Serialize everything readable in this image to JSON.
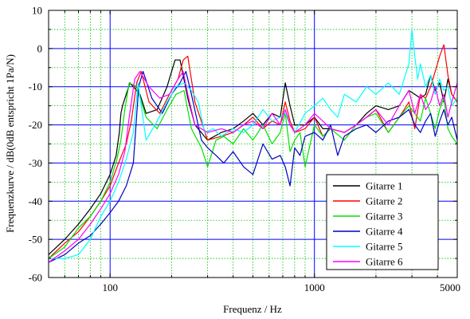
{
  "chart_data": {
    "type": "line",
    "title": "",
    "xlabel": "Frequenz / Hz",
    "ylabel": "Frequenzkurve / dB(0dB entspricht 1Pa/N)",
    "xscale": "log",
    "xlim": [
      50,
      5000
    ],
    "ylim": [
      -60,
      10
    ],
    "xticks": [
      {
        "value": 100,
        "label": "100"
      },
      {
        "value": 1000,
        "label": "1000"
      },
      {
        "value": 5000,
        "label": "5000"
      }
    ],
    "yticks": [
      {
        "value": 10,
        "label": "10"
      },
      {
        "value": 0,
        "label": "0"
      },
      {
        "value": -10,
        "label": "-10"
      },
      {
        "value": -20,
        "label": "-20"
      },
      {
        "value": -30,
        "label": "-30"
      },
      {
        "value": -40,
        "label": "-40"
      },
      {
        "value": -50,
        "label": "-50"
      },
      {
        "value": -60,
        "label": "-60"
      }
    ],
    "grid": {
      "major": true,
      "minor": true,
      "major_color": "#0000ff",
      "minor_color": "#00c000"
    },
    "legend_position": "bottom-right",
    "series": [
      {
        "name": "Gitarre 1",
        "color": "#000000",
        "x": [
          50,
          60,
          70,
          80,
          90,
          100,
          107,
          111,
          113,
          115,
          125,
          140,
          150,
          170,
          190,
          208,
          220,
          240,
          260,
          300,
          350,
          400,
          450,
          500,
          560,
          620,
          680,
          720,
          760,
          800,
          900,
          1000,
          1100,
          1200,
          1400,
          1600,
          1800,
          2000,
          2300,
          2600,
          2900,
          3100,
          3300,
          3500,
          3700,
          3900,
          4100,
          4300,
          4500,
          4700,
          5000
        ],
        "y": [
          -54,
          -50,
          -46,
          -42,
          -38,
          -33,
          -28,
          -22,
          -17,
          -15,
          -9,
          -12,
          -17,
          -16,
          -10,
          -3,
          -3,
          -13,
          -20,
          -24,
          -22,
          -21,
          -19,
          -17,
          -20,
          -17,
          -18,
          -9,
          -15,
          -20,
          -20,
          -18,
          -21,
          -21,
          -22,
          -20,
          -17,
          -15,
          -16,
          -15,
          -11,
          -12,
          -13,
          -12,
          -7,
          -11,
          -9,
          -14,
          -8,
          -12,
          -14
        ]
      },
      {
        "name": "Gitarre 2",
        "color": "#ff0000",
        "x": [
          50,
          60,
          70,
          80,
          90,
          100,
          110,
          120,
          127,
          135,
          142,
          155,
          175,
          195,
          215,
          228,
          240,
          260,
          300,
          350,
          400,
          450,
          500,
          560,
          620,
          680,
          720,
          760,
          800,
          900,
          1000,
          1100,
          1200,
          1400,
          1600,
          1800,
          2000,
          2300,
          2600,
          2900,
          3100,
          3300,
          3500,
          3700,
          3900,
          4100,
          4300,
          4500,
          4700,
          5000
        ],
        "y": [
          -55,
          -51,
          -48,
          -44,
          -40,
          -36,
          -30,
          -25,
          -19,
          -9,
          -6,
          -14,
          -17,
          -12,
          -8,
          -3,
          -2,
          -14,
          -24,
          -23,
          -22,
          -20,
          -18,
          -21,
          -19,
          -20,
          -14,
          -19,
          -22,
          -21,
          -18,
          -23,
          -21,
          -22,
          -20,
          -18,
          -16,
          -22,
          -18,
          -14,
          -21,
          -12,
          -13,
          -10,
          -6,
          -2,
          1,
          -7,
          -12,
          -14
        ]
      },
      {
        "name": "Gitarre 3",
        "color": "#00e000",
        "x": [
          50,
          60,
          70,
          80,
          90,
          100,
          108,
          113,
          118,
          124,
          135,
          150,
          170,
          190,
          210,
          230,
          250,
          280,
          300,
          330,
          360,
          400,
          450,
          500,
          560,
          620,
          680,
          720,
          760,
          800,
          850,
          900,
          1000,
          1100,
          1200,
          1400,
          1600,
          1800,
          2000,
          2300,
          2600,
          2900,
          3100,
          3300,
          3500,
          3700,
          3900,
          4100,
          4300,
          4500,
          4700,
          5000
        ],
        "y": [
          -55,
          -52,
          -47,
          -44,
          -40,
          -35,
          -29,
          -24,
          -16,
          -9,
          -10,
          -18,
          -21,
          -16,
          -12,
          -11,
          -21,
          -26,
          -31,
          -24,
          -23,
          -25,
          -21,
          -24,
          -20,
          -25,
          -22,
          -17,
          -27,
          -24,
          -22,
          -31,
          -20,
          -23,
          -21,
          -24,
          -20,
          -18,
          -17,
          -22,
          -18,
          -15,
          -17,
          -19,
          -13,
          -17,
          -21,
          -16,
          -13,
          -21,
          -23,
          -25
        ]
      },
      {
        "name": "Gitarre 4",
        "color": "#0000c0",
        "x": [
          50,
          60,
          70,
          80,
          90,
          100,
          110,
          120,
          130,
          138,
          145,
          160,
          180,
          200,
          220,
          235,
          250,
          280,
          300,
          330,
          360,
          400,
          450,
          500,
          560,
          620,
          680,
          720,
          760,
          800,
          850,
          900,
          1000,
          1100,
          1200,
          1300,
          1400,
          1600,
          1800,
          2000,
          2300,
          2600,
          2900,
          3100,
          3300,
          3500,
          3700,
          3900,
          4100,
          4300,
          4500,
          4700,
          5000
        ],
        "y": [
          -56,
          -54,
          -51,
          -49,
          -46,
          -43,
          -40,
          -36,
          -30,
          -10,
          -6,
          -13,
          -17,
          -12,
          -9,
          -6,
          -12,
          -24,
          -26,
          -28,
          -30,
          -27,
          -31,
          -33,
          -25,
          -29,
          -28,
          -31,
          -36,
          -26,
          -28,
          -23,
          -22,
          -24,
          -20,
          -28,
          -23,
          -21,
          -20,
          -22,
          -19,
          -18,
          -16,
          -20,
          -22,
          -19,
          -17,
          -23,
          -19,
          -16,
          -20,
          -18,
          -24
        ]
      },
      {
        "name": "Gitarre 5",
        "color": "#00ffff",
        "x": [
          50,
          60,
          70,
          80,
          90,
          100,
          110,
          120,
          130,
          137,
          150,
          170,
          190,
          210,
          230,
          250,
          270,
          290,
          320,
          350,
          400,
          450,
          500,
          560,
          620,
          680,
          720,
          760,
          800,
          900,
          1000,
          1100,
          1200,
          1300,
          1400,
          1600,
          1800,
          2000,
          2300,
          2600,
          2900,
          3000,
          3100,
          3200,
          3300,
          3500,
          3700,
          3900,
          4100,
          4300,
          4500,
          4700,
          5000
        ],
        "y": [
          -55,
          -55,
          -54,
          -50,
          -44,
          -40,
          -35,
          -29,
          -22,
          -9,
          -24,
          -19,
          -14,
          -10,
          -9,
          -11,
          -14,
          -22,
          -21,
          -23,
          -21,
          -22,
          -20,
          -16,
          -19,
          -18,
          -17,
          -20,
          -22,
          -17,
          -15,
          -13,
          -16,
          -18,
          -12,
          -14,
          -10,
          -12,
          -9,
          -12,
          -4,
          5,
          -2,
          -8,
          -4,
          -10,
          -7,
          -12,
          -8,
          -11,
          -10,
          -15,
          -13
        ]
      },
      {
        "name": "Gitarre 6",
        "color": "#ff00ff",
        "x": [
          50,
          60,
          70,
          80,
          90,
          100,
          110,
          118,
          124,
          132,
          140,
          155,
          175,
          195,
          215,
          228,
          240,
          260,
          300,
          350,
          400,
          450,
          500,
          560,
          620,
          680,
          720,
          760,
          800,
          900,
          1000,
          1100,
          1200,
          1400,
          1600,
          1800,
          2000,
          2300,
          2600,
          2900,
          3100,
          3300,
          3500,
          3700,
          3900,
          4100,
          4300,
          4500,
          4700,
          5000
        ],
        "y": [
          -56,
          -53,
          -50,
          -46,
          -42,
          -38,
          -33,
          -27,
          -18,
          -8,
          -6,
          -10,
          -13,
          -12,
          -8,
          -6,
          -12,
          -20,
          -22,
          -21,
          -22,
          -20,
          -19,
          -21,
          -17,
          -20,
          -16,
          -20,
          -22,
          -20,
          -17,
          -19,
          -21,
          -22,
          -20,
          -18,
          -16,
          -20,
          -15,
          -11,
          -17,
          -12,
          -16,
          -14,
          -10,
          -15,
          -12,
          -18,
          -14,
          -9
        ]
      }
    ]
  }
}
